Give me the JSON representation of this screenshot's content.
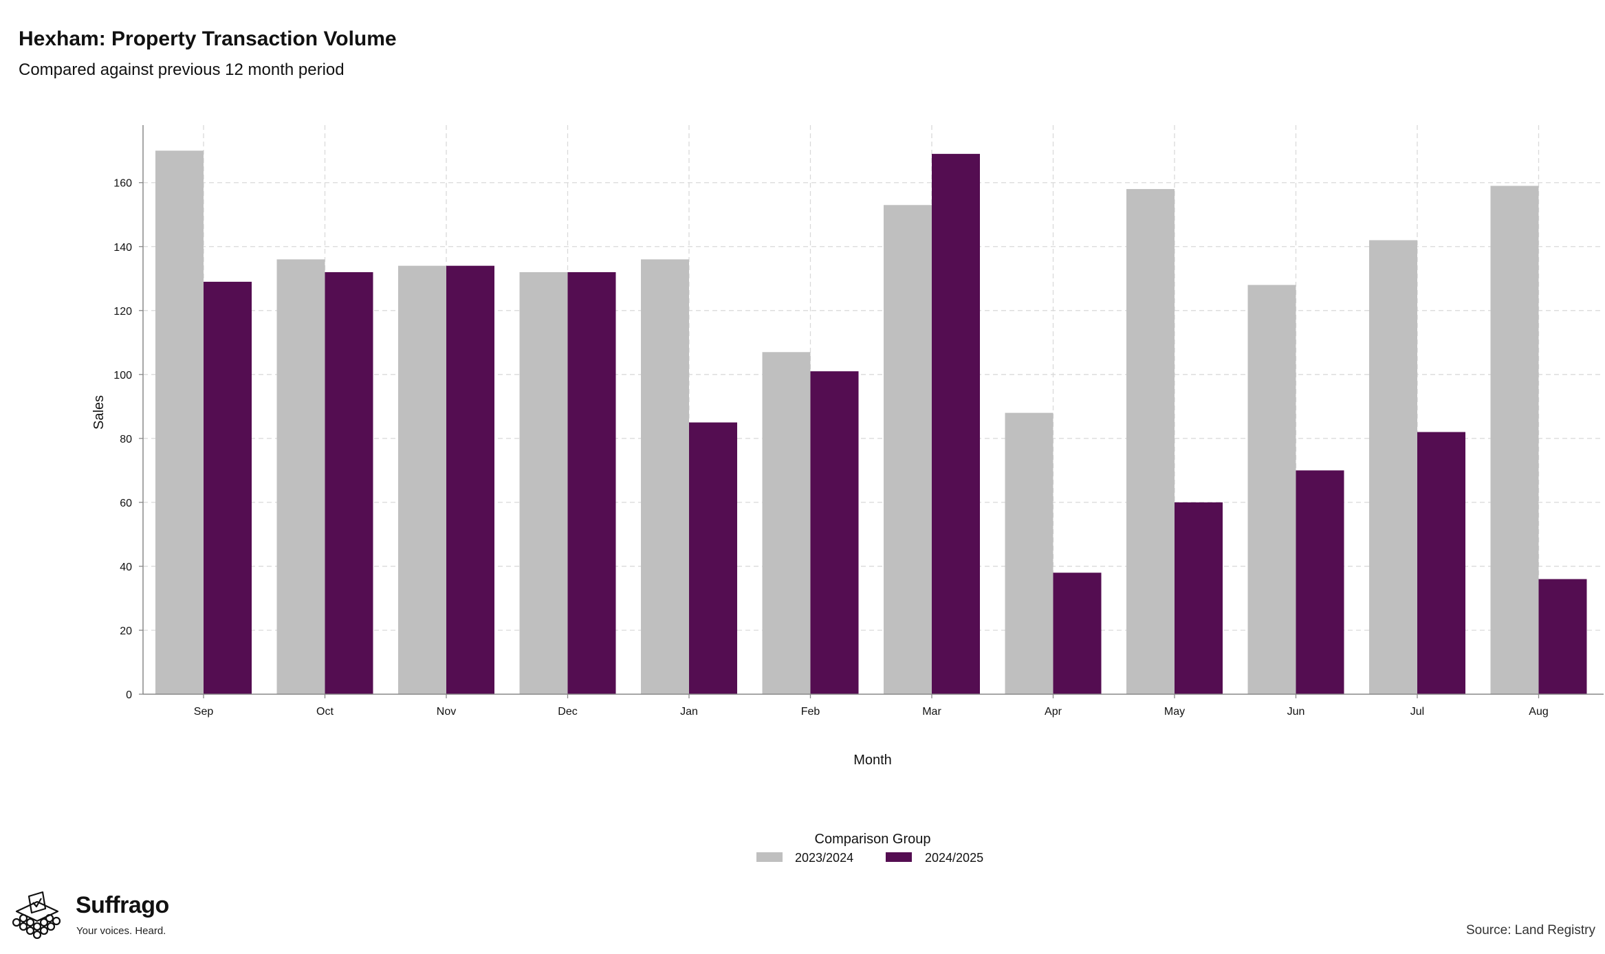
{
  "header": {
    "title": "Hexham: Property Transaction Volume",
    "subtitle": "Compared against previous 12 month period"
  },
  "brand": {
    "name": "Suffrago",
    "tagline": "Your voices. Heard.",
    "logo_icon": "ballot-box-crowd-icon"
  },
  "source": "Source: Land Registry",
  "chart_data": {
    "type": "bar",
    "xlabel": "Month",
    "ylabel": "Sales",
    "ylim": [
      0,
      178
    ],
    "yticks": [
      0,
      20,
      40,
      60,
      80,
      100,
      120,
      140,
      160
    ],
    "grid": true,
    "categories": [
      "Sep",
      "Oct",
      "Nov",
      "Dec",
      "Jan",
      "Feb",
      "Mar",
      "Apr",
      "May",
      "Jun",
      "Jul",
      "Aug"
    ],
    "legend": {
      "title": "Comparison Group",
      "position": "bottom"
    },
    "series": [
      {
        "name": "2023/2024",
        "color": "#bfbfbf",
        "values": [
          170,
          136,
          134,
          132,
          136,
          107,
          153,
          88,
          158,
          128,
          142,
          159
        ]
      },
      {
        "name": "2024/2025",
        "color": "#540d51",
        "values": [
          129,
          132,
          134,
          132,
          85,
          101,
          169,
          38,
          60,
          70,
          82,
          36
        ]
      }
    ]
  }
}
